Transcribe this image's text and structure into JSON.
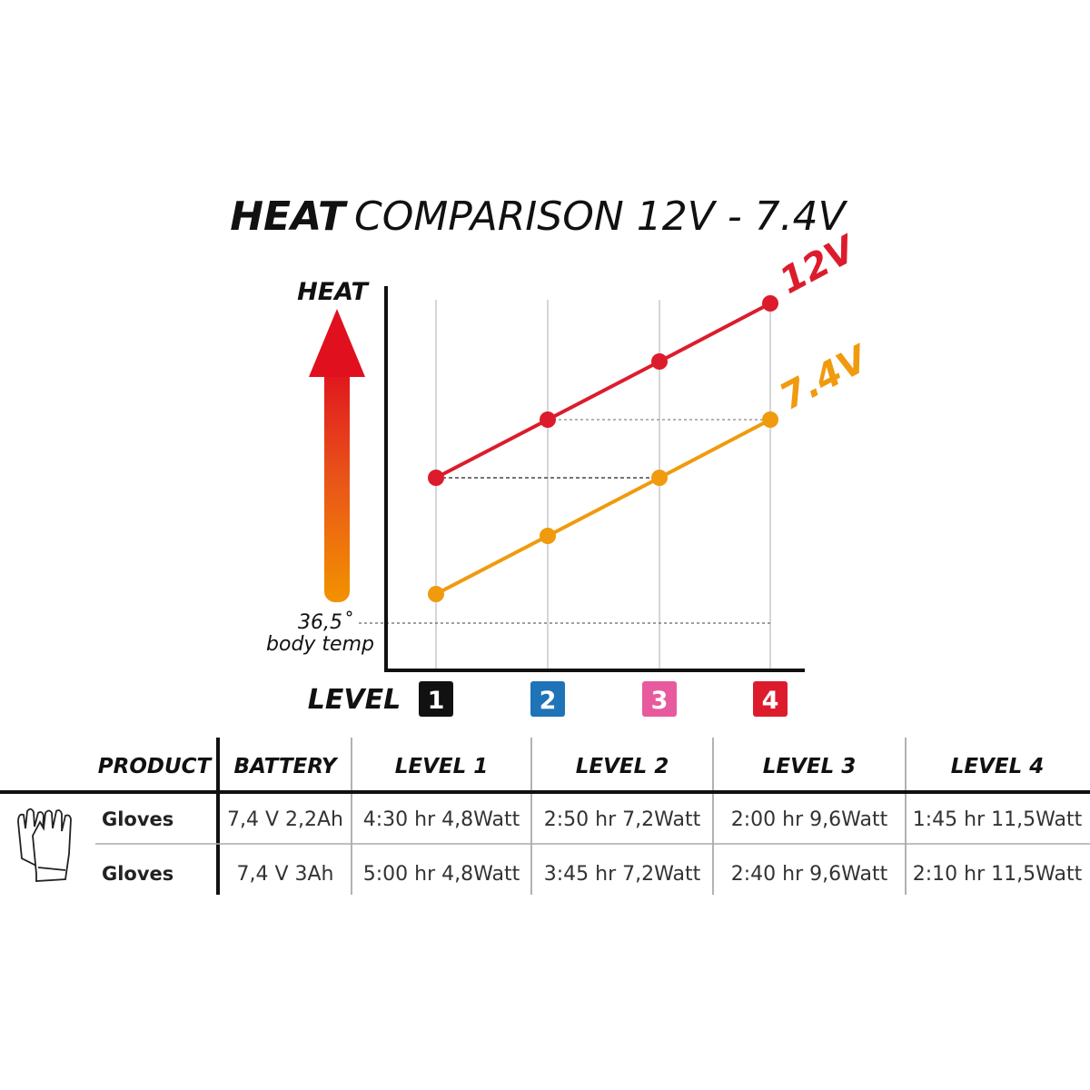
{
  "chart_data": {
    "type": "line",
    "title_bold": "HEAT",
    "title_rest": "COMPARISON 12V - 7.4V",
    "ylabel": "HEAT",
    "xlabel": "LEVEL",
    "baseline_label_value": "36,5˚",
    "baseline_label_text": "body temp",
    "categories": [
      "1",
      "2",
      "3",
      "4"
    ],
    "category_colors": [
      "#111111",
      "#1f73b7",
      "#e85a9e",
      "#dc1c2c"
    ],
    "ylim": [
      0,
      6
    ],
    "series": [
      {
        "name": "12V",
        "color": "#dc1c2c",
        "values": [
          2.5,
          3.5,
          4.5,
          5.5
        ]
      },
      {
        "name": "7.4V",
        "color": "#f09a0e",
        "values": [
          0.5,
          1.5,
          2.5,
          3.5
        ]
      }
    ],
    "grid": "vertical lines at levels"
  },
  "table": {
    "headers": [
      "PRODUCT",
      "BATTERY",
      "LEVEL 1",
      "LEVEL 2",
      "LEVEL 3",
      "LEVEL 4"
    ],
    "product_icon": "gloves-icon",
    "rows": [
      [
        "Gloves",
        "7,4 V 2,2Ah",
        "4:30 hr 4,8Watt",
        "2:50 hr 7,2Watt",
        "2:00 hr 9,6Watt",
        "1:45 hr 11,5Watt"
      ],
      [
        "Gloves",
        "7,4 V 3Ah",
        "5:00 hr 4,8Watt",
        "3:45 hr 7,2Watt",
        "2:40 hr 9,6Watt",
        "2:10 hr 11,5Watt"
      ]
    ]
  }
}
